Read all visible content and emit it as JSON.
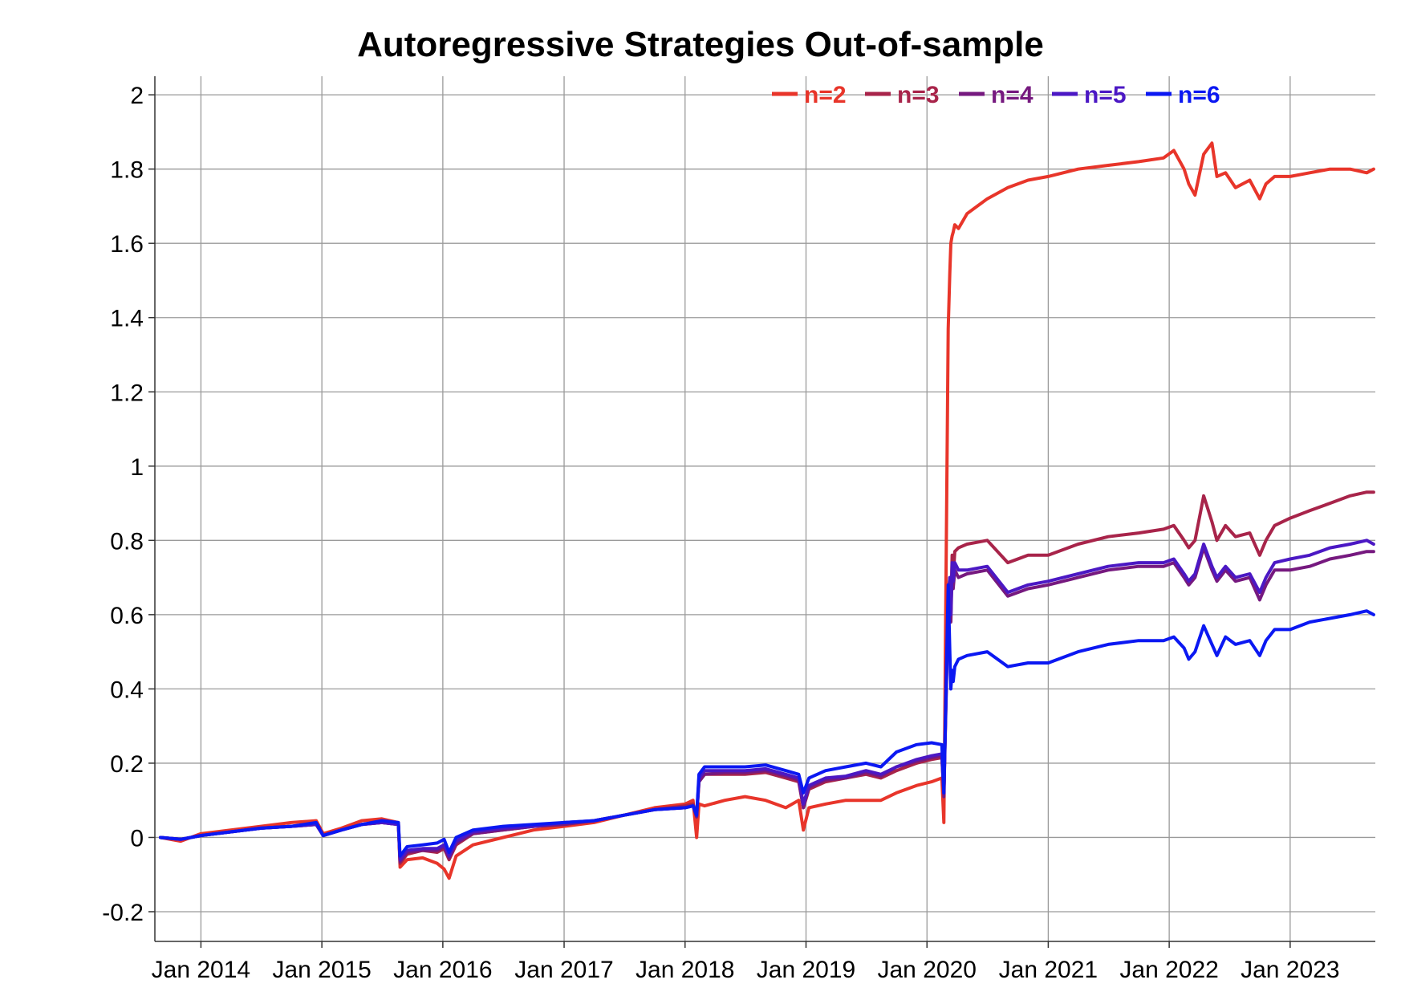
{
  "chart_data": {
    "type": "line",
    "title": "Autoregressive Strategies Out-of-sample",
    "xlabel": "",
    "ylabel": "",
    "x_ticks": [
      {
        "date": "2014-01-01",
        "label": "Jan 2014"
      },
      {
        "date": "2015-01-01",
        "label": "Jan 2015"
      },
      {
        "date": "2016-01-01",
        "label": "Jan 2016"
      },
      {
        "date": "2017-01-01",
        "label": "Jan 2017"
      },
      {
        "date": "2018-01-01",
        "label": "Jan 2018"
      },
      {
        "date": "2019-01-01",
        "label": "Jan 2019"
      },
      {
        "date": "2020-01-01",
        "label": "Jan 2020"
      },
      {
        "date": "2021-01-01",
        "label": "Jan 2021"
      },
      {
        "date": "2022-01-01",
        "label": "Jan 2022"
      },
      {
        "date": "2023-01-01",
        "label": "Jan 2023"
      }
    ],
    "xlim": [
      "2013-08-15",
      "2023-09-15"
    ],
    "y_ticks": [
      {
        "value": -0.2,
        "label": "-0.2"
      },
      {
        "value": 0,
        "label": "0"
      },
      {
        "value": 0.2,
        "label": "0.2"
      },
      {
        "value": 0.4,
        "label": "0.4"
      },
      {
        "value": 0.6,
        "label": "0.6"
      },
      {
        "value": 0.8,
        "label": "0.8"
      },
      {
        "value": 1,
        "label": "1"
      },
      {
        "value": 1.2,
        "label": "1.2"
      },
      {
        "value": 1.4,
        "label": "1.4"
      },
      {
        "value": 1.6,
        "label": "1.6"
      },
      {
        "value": 1.8,
        "label": "1.8"
      },
      {
        "value": 2,
        "label": "2"
      }
    ],
    "ylim": [
      -0.28,
      2.05
    ],
    "grid": true,
    "legend_position": "top-right",
    "series": [
      {
        "name": "n=2",
        "color": "#e8352a",
        "x": [
          "2013-09-01",
          "2013-11-01",
          "2014-01-01",
          "2014-04-01",
          "2014-07-01",
          "2014-10-01",
          "2014-12-15",
          "2015-01-05",
          "2015-03-01",
          "2015-05-01",
          "2015-07-01",
          "2015-08-20",
          "2015-08-25",
          "2015-09-15",
          "2015-11-01",
          "2015-12-15",
          "2016-01-05",
          "2016-01-20",
          "2016-02-10",
          "2016-04-01",
          "2016-07-01",
          "2016-10-01",
          "2017-01-01",
          "2017-04-01",
          "2017-07-01",
          "2017-10-01",
          "2018-01-01",
          "2018-01-25",
          "2018-02-05",
          "2018-02-12",
          "2018-03-01",
          "2018-05-01",
          "2018-07-01",
          "2018-09-01",
          "2018-11-01",
          "2018-12-10",
          "2018-12-24",
          "2019-01-10",
          "2019-03-01",
          "2019-05-01",
          "2019-07-01",
          "2019-08-15",
          "2019-10-01",
          "2019-12-01",
          "2020-01-15",
          "2020-02-15",
          "2020-02-21",
          "2020-03-05",
          "2020-03-10",
          "2020-03-13",
          "2020-03-17",
          "2020-03-20",
          "2020-03-25",
          "2020-04-05",
          "2020-05-01",
          "2020-07-01",
          "2020-09-01",
          "2020-11-01",
          "2021-01-01",
          "2021-04-01",
          "2021-07-01",
          "2021-10-01",
          "2021-12-15",
          "2022-01-15",
          "2022-02-15",
          "2022-03-01",
          "2022-03-20",
          "2022-04-15",
          "2022-05-10",
          "2022-05-25",
          "2022-06-20",
          "2022-07-20",
          "2022-09-01",
          "2022-10-01",
          "2022-10-20",
          "2022-11-15",
          "2023-01-01",
          "2023-03-01",
          "2023-05-01",
          "2023-07-01",
          "2023-08-20",
          "2023-09-10"
        ],
        "y": [
          0,
          -0.01,
          0.01,
          0.02,
          0.03,
          0.04,
          0.045,
          0.01,
          0.025,
          0.045,
          0.05,
          0.04,
          -0.08,
          -0.06,
          -0.055,
          -0.07,
          -0.085,
          -0.11,
          -0.05,
          -0.02,
          0.0,
          0.02,
          0.03,
          0.04,
          0.06,
          0.08,
          0.09,
          0.1,
          0.0,
          0.09,
          0.085,
          0.1,
          0.11,
          0.1,
          0.08,
          0.1,
          0.02,
          0.08,
          0.09,
          0.1,
          0.1,
          0.1,
          0.12,
          0.14,
          0.15,
          0.16,
          0.04,
          1.37,
          1.52,
          1.6,
          1.62,
          1.63,
          1.65,
          1.64,
          1.68,
          1.72,
          1.75,
          1.77,
          1.78,
          1.8,
          1.81,
          1.82,
          1.83,
          1.85,
          1.8,
          1.76,
          1.73,
          1.84,
          1.87,
          1.78,
          1.79,
          1.75,
          1.77,
          1.72,
          1.76,
          1.78,
          1.78,
          1.79,
          1.8,
          1.8,
          1.79,
          1.8
        ]
      },
      {
        "name": "n=3",
        "color": "#a8244a",
        "x": [
          "2013-09-01",
          "2013-11-01",
          "2014-01-01",
          "2014-04-01",
          "2014-07-01",
          "2014-10-01",
          "2014-12-15",
          "2015-01-05",
          "2015-03-01",
          "2015-05-01",
          "2015-07-01",
          "2015-08-20",
          "2015-08-25",
          "2015-09-15",
          "2015-11-01",
          "2015-12-15",
          "2016-01-05",
          "2016-01-20",
          "2016-02-10",
          "2016-04-01",
          "2016-07-01",
          "2016-10-01",
          "2017-01-01",
          "2017-04-01",
          "2017-07-01",
          "2017-10-01",
          "2018-01-01",
          "2018-01-25",
          "2018-02-05",
          "2018-02-12",
          "2018-03-01",
          "2018-05-01",
          "2018-07-01",
          "2018-09-01",
          "2018-11-01",
          "2018-12-10",
          "2018-12-24",
          "2019-01-10",
          "2019-03-01",
          "2019-05-01",
          "2019-07-01",
          "2019-08-15",
          "2019-10-01",
          "2019-12-01",
          "2020-01-15",
          "2020-02-15",
          "2020-02-21",
          "2020-03-05",
          "2020-03-10",
          "2020-03-13",
          "2020-03-17",
          "2020-03-20",
          "2020-03-25",
          "2020-04-05",
          "2020-05-01",
          "2020-07-01",
          "2020-09-01",
          "2020-11-01",
          "2021-01-01",
          "2021-04-01",
          "2021-07-01",
          "2021-10-01",
          "2021-12-15",
          "2022-01-15",
          "2022-02-15",
          "2022-03-01",
          "2022-03-20",
          "2022-04-15",
          "2022-05-10",
          "2022-05-25",
          "2022-06-20",
          "2022-07-20",
          "2022-09-01",
          "2022-10-01",
          "2022-10-20",
          "2022-11-15",
          "2023-01-01",
          "2023-03-01",
          "2023-05-01",
          "2023-07-01",
          "2023-08-20",
          "2023-09-10"
        ],
        "y": [
          0,
          -0.005,
          0.005,
          0.015,
          0.025,
          0.03,
          0.035,
          0.005,
          0.02,
          0.035,
          0.04,
          0.035,
          -0.07,
          -0.045,
          -0.035,
          -0.04,
          -0.03,
          -0.06,
          -0.02,
          0.01,
          0.02,
          0.03,
          0.035,
          0.045,
          0.06,
          0.075,
          0.085,
          0.09,
          0.06,
          0.15,
          0.17,
          0.17,
          0.17,
          0.175,
          0.16,
          0.15,
          0.08,
          0.13,
          0.15,
          0.16,
          0.17,
          0.16,
          0.18,
          0.2,
          0.21,
          0.215,
          0.12,
          0.65,
          0.7,
          0.6,
          0.76,
          0.7,
          0.77,
          0.78,
          0.79,
          0.8,
          0.74,
          0.76,
          0.76,
          0.79,
          0.81,
          0.82,
          0.83,
          0.84,
          0.8,
          0.78,
          0.8,
          0.92,
          0.85,
          0.8,
          0.84,
          0.81,
          0.82,
          0.76,
          0.8,
          0.84,
          0.86,
          0.88,
          0.9,
          0.92,
          0.93,
          0.93
        ]
      },
      {
        "name": "n=4",
        "color": "#76197f",
        "x": [
          "2013-09-01",
          "2013-11-01",
          "2014-01-01",
          "2014-04-01",
          "2014-07-01",
          "2014-10-01",
          "2014-12-15",
          "2015-01-05",
          "2015-03-01",
          "2015-05-01",
          "2015-07-01",
          "2015-08-20",
          "2015-08-25",
          "2015-09-15",
          "2015-11-01",
          "2015-12-15",
          "2016-01-05",
          "2016-01-20",
          "2016-02-10",
          "2016-04-01",
          "2016-07-01",
          "2016-10-01",
          "2017-01-01",
          "2017-04-01",
          "2017-07-01",
          "2017-10-01",
          "2018-01-01",
          "2018-01-25",
          "2018-02-05",
          "2018-02-12",
          "2018-03-01",
          "2018-05-01",
          "2018-07-01",
          "2018-09-01",
          "2018-11-01",
          "2018-12-10",
          "2018-12-24",
          "2019-01-10",
          "2019-03-01",
          "2019-05-01",
          "2019-07-01",
          "2019-08-15",
          "2019-10-01",
          "2019-12-01",
          "2020-01-15",
          "2020-02-15",
          "2020-02-21",
          "2020-03-05",
          "2020-03-10",
          "2020-03-13",
          "2020-03-17",
          "2020-03-20",
          "2020-03-25",
          "2020-04-05",
          "2020-05-01",
          "2020-07-01",
          "2020-09-01",
          "2020-11-01",
          "2021-01-01",
          "2021-04-01",
          "2021-07-01",
          "2021-10-01",
          "2021-12-15",
          "2022-01-15",
          "2022-02-15",
          "2022-03-01",
          "2022-03-20",
          "2022-04-15",
          "2022-05-10",
          "2022-05-25",
          "2022-06-20",
          "2022-07-20",
          "2022-09-01",
          "2022-10-01",
          "2022-10-20",
          "2022-11-15",
          "2023-01-01",
          "2023-03-01",
          "2023-05-01",
          "2023-07-01",
          "2023-08-20",
          "2023-09-10"
        ],
        "y": [
          0,
          -0.005,
          0.005,
          0.015,
          0.025,
          0.03,
          0.035,
          0.005,
          0.02,
          0.035,
          0.04,
          0.035,
          -0.065,
          -0.04,
          -0.035,
          -0.035,
          -0.025,
          -0.055,
          -0.015,
          0.01,
          0.02,
          0.03,
          0.035,
          0.045,
          0.06,
          0.075,
          0.08,
          0.085,
          0.055,
          0.15,
          0.17,
          0.175,
          0.175,
          0.18,
          0.165,
          0.155,
          0.08,
          0.135,
          0.155,
          0.16,
          0.175,
          0.165,
          0.19,
          0.205,
          0.215,
          0.22,
          0.11,
          0.62,
          0.68,
          0.58,
          0.72,
          0.67,
          0.72,
          0.7,
          0.71,
          0.72,
          0.65,
          0.67,
          0.68,
          0.7,
          0.72,
          0.73,
          0.73,
          0.74,
          0.7,
          0.68,
          0.7,
          0.78,
          0.72,
          0.69,
          0.72,
          0.69,
          0.7,
          0.64,
          0.68,
          0.72,
          0.72,
          0.73,
          0.75,
          0.76,
          0.77,
          0.77
        ]
      },
      {
        "name": "n=5",
        "color": "#4b18c4",
        "x": [
          "2013-09-01",
          "2013-11-01",
          "2014-01-01",
          "2014-04-01",
          "2014-07-01",
          "2014-10-01",
          "2014-12-15",
          "2015-01-05",
          "2015-03-01",
          "2015-05-01",
          "2015-07-01",
          "2015-08-20",
          "2015-08-25",
          "2015-09-15",
          "2015-11-01",
          "2015-12-15",
          "2016-01-05",
          "2016-01-20",
          "2016-02-10",
          "2016-04-01",
          "2016-07-01",
          "2016-10-01",
          "2017-01-01",
          "2017-04-01",
          "2017-07-01",
          "2017-10-01",
          "2018-01-01",
          "2018-01-25",
          "2018-02-05",
          "2018-02-12",
          "2018-03-01",
          "2018-05-01",
          "2018-07-01",
          "2018-09-01",
          "2018-11-01",
          "2018-12-10",
          "2018-12-24",
          "2019-01-10",
          "2019-03-01",
          "2019-05-01",
          "2019-07-01",
          "2019-08-15",
          "2019-10-01",
          "2019-12-01",
          "2020-01-15",
          "2020-02-15",
          "2020-02-21",
          "2020-03-05",
          "2020-03-10",
          "2020-03-13",
          "2020-03-17",
          "2020-03-20",
          "2020-03-25",
          "2020-04-05",
          "2020-05-01",
          "2020-07-01",
          "2020-09-01",
          "2020-11-01",
          "2021-01-01",
          "2021-04-01",
          "2021-07-01",
          "2021-10-01",
          "2021-12-15",
          "2022-01-15",
          "2022-02-15",
          "2022-03-01",
          "2022-03-20",
          "2022-04-15",
          "2022-05-10",
          "2022-05-25",
          "2022-06-20",
          "2022-07-20",
          "2022-09-01",
          "2022-10-01",
          "2022-10-20",
          "2022-11-15",
          "2023-01-01",
          "2023-03-01",
          "2023-05-01",
          "2023-07-01",
          "2023-08-20",
          "2023-09-10"
        ],
        "y": [
          0,
          -0.005,
          0.005,
          0.015,
          0.025,
          0.03,
          0.035,
          0.005,
          0.02,
          0.035,
          0.04,
          0.035,
          -0.06,
          -0.035,
          -0.03,
          -0.03,
          -0.02,
          -0.05,
          -0.01,
          0.015,
          0.025,
          0.03,
          0.04,
          0.045,
          0.06,
          0.075,
          0.08,
          0.085,
          0.06,
          0.16,
          0.18,
          0.18,
          0.18,
          0.185,
          0.17,
          0.16,
          0.09,
          0.14,
          0.16,
          0.165,
          0.18,
          0.17,
          0.19,
          0.21,
          0.22,
          0.225,
          0.12,
          0.63,
          0.7,
          0.6,
          0.74,
          0.69,
          0.74,
          0.72,
          0.72,
          0.73,
          0.66,
          0.68,
          0.69,
          0.71,
          0.73,
          0.74,
          0.74,
          0.75,
          0.71,
          0.69,
          0.71,
          0.79,
          0.73,
          0.7,
          0.73,
          0.7,
          0.71,
          0.66,
          0.7,
          0.74,
          0.75,
          0.76,
          0.78,
          0.79,
          0.8,
          0.79
        ]
      },
      {
        "name": "n=6",
        "color": "#0b18f2",
        "x": [
          "2013-09-01",
          "2013-11-01",
          "2014-01-01",
          "2014-04-01",
          "2014-07-01",
          "2014-10-01",
          "2014-12-15",
          "2015-01-05",
          "2015-03-01",
          "2015-05-01",
          "2015-07-01",
          "2015-08-20",
          "2015-08-25",
          "2015-09-15",
          "2015-11-01",
          "2015-12-15",
          "2016-01-05",
          "2016-01-20",
          "2016-02-10",
          "2016-04-01",
          "2016-07-01",
          "2016-10-01",
          "2017-01-01",
          "2017-04-01",
          "2017-07-01",
          "2017-10-01",
          "2018-01-01",
          "2018-01-25",
          "2018-02-05",
          "2018-02-12",
          "2018-03-01",
          "2018-05-01",
          "2018-07-01",
          "2018-09-01",
          "2018-11-01",
          "2018-12-10",
          "2018-12-24",
          "2019-01-10",
          "2019-03-01",
          "2019-05-01",
          "2019-07-01",
          "2019-08-15",
          "2019-10-01",
          "2019-12-01",
          "2020-01-15",
          "2020-02-15",
          "2020-02-21",
          "2020-03-05",
          "2020-03-10",
          "2020-03-13",
          "2020-03-17",
          "2020-03-20",
          "2020-03-25",
          "2020-04-05",
          "2020-05-01",
          "2020-07-01",
          "2020-09-01",
          "2020-11-01",
          "2021-01-01",
          "2021-04-01",
          "2021-07-01",
          "2021-10-01",
          "2021-12-15",
          "2022-01-15",
          "2022-02-15",
          "2022-03-01",
          "2022-03-20",
          "2022-04-15",
          "2022-05-10",
          "2022-05-25",
          "2022-06-20",
          "2022-07-20",
          "2022-09-01",
          "2022-10-01",
          "2022-10-20",
          "2022-11-15",
          "2023-01-01",
          "2023-03-01",
          "2023-05-01",
          "2023-07-01",
          "2023-08-20",
          "2023-09-10"
        ],
        "y": [
          0,
          -0.005,
          0.005,
          0.015,
          0.025,
          0.03,
          0.04,
          0.005,
          0.02,
          0.035,
          0.045,
          0.04,
          -0.05,
          -0.025,
          -0.02,
          -0.015,
          -0.005,
          -0.04,
          0.0,
          0.02,
          0.03,
          0.035,
          0.04,
          0.045,
          0.06,
          0.075,
          0.08,
          0.085,
          0.06,
          0.17,
          0.19,
          0.19,
          0.19,
          0.195,
          0.18,
          0.17,
          0.12,
          0.16,
          0.18,
          0.19,
          0.2,
          0.19,
          0.23,
          0.25,
          0.255,
          0.25,
          0.12,
          0.68,
          0.5,
          0.4,
          0.45,
          0.42,
          0.46,
          0.48,
          0.49,
          0.5,
          0.46,
          0.47,
          0.47,
          0.5,
          0.52,
          0.53,
          0.53,
          0.54,
          0.51,
          0.48,
          0.5,
          0.57,
          0.52,
          0.49,
          0.54,
          0.52,
          0.53,
          0.49,
          0.53,
          0.56,
          0.56,
          0.58,
          0.59,
          0.6,
          0.61,
          0.6
        ]
      }
    ]
  }
}
